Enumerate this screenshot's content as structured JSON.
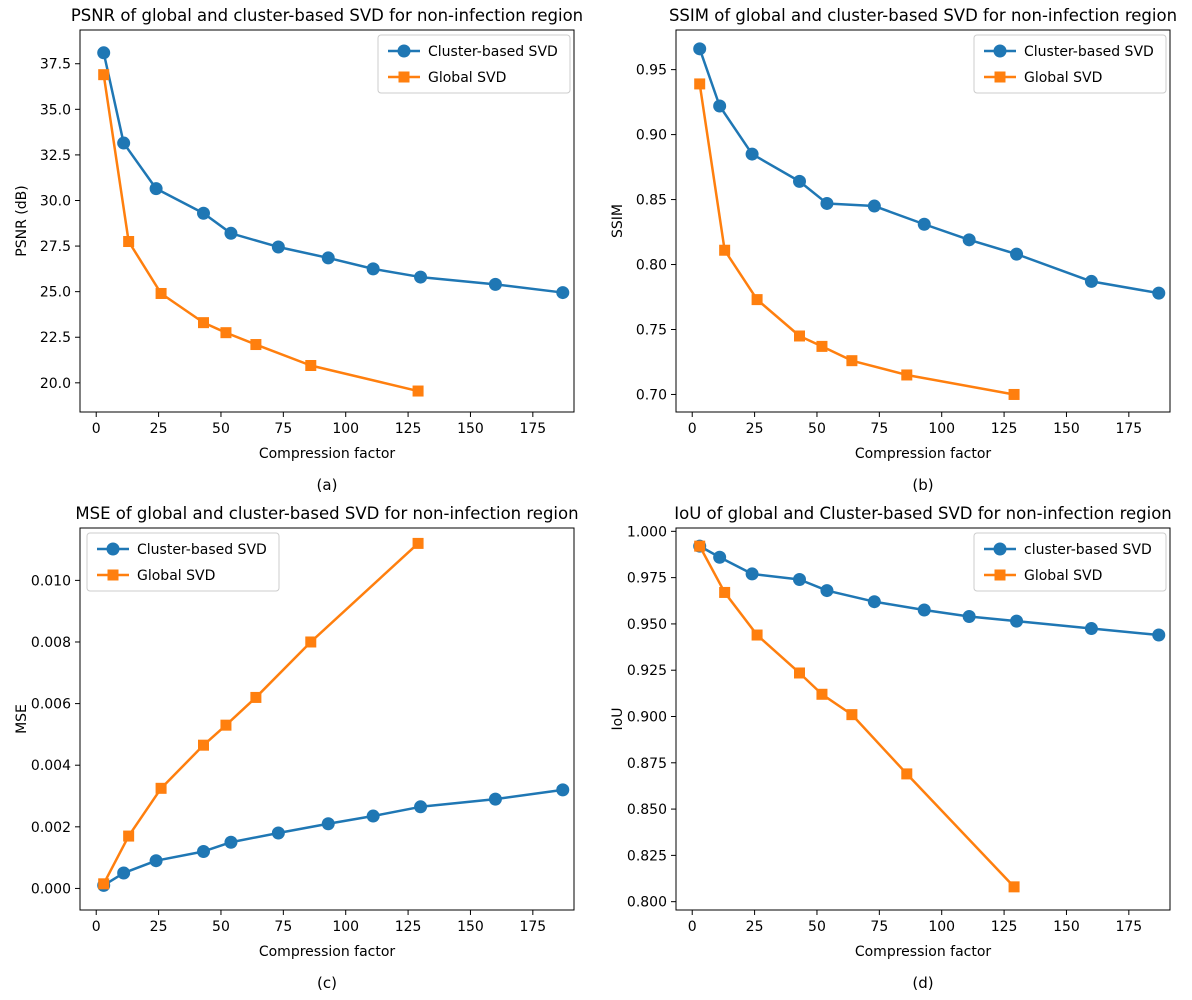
{
  "figure_background": "#ffffff",
  "colors": {
    "cluster_blue": "#1f77b4",
    "global_orange": "#ff7f0e"
  },
  "chart_data": [
    {
      "type": "line",
      "caption": "(a)",
      "title": "PSNR of global and cluster-based SVD for non-infection region",
      "xlabel": "Compression factor",
      "ylabel": "PSNR (dB)",
      "xlim": [
        -6.5,
        191.5
      ],
      "ylim": [
        18.4,
        39.35
      ],
      "grid": false,
      "legend_position": "upper-right",
      "xticks": {
        "values": [
          0,
          25,
          50,
          75,
          100,
          125,
          150,
          175
        ],
        "labels": [
          "0",
          "25",
          "50",
          "75",
          "100",
          "125",
          "150",
          "175"
        ]
      },
      "yticks": {
        "values": [
          20.0,
          22.5,
          25.0,
          27.5,
          30.0,
          32.5,
          35.0,
          37.5
        ],
        "labels": [
          "20.0",
          "22.5",
          "25.0",
          "27.5",
          "30.0",
          "32.5",
          "35.0",
          "37.5"
        ]
      },
      "series": [
        {
          "name": "Cluster-based SVD",
          "color": "#1f77b4",
          "marker": "circle",
          "x": [
            3,
            11,
            24,
            43,
            54,
            73,
            93,
            111,
            130,
            160,
            187
          ],
          "y": [
            38.1,
            33.15,
            30.65,
            29.3,
            28.2,
            27.45,
            26.85,
            26.25,
            25.8,
            25.4,
            24.95
          ]
        },
        {
          "name": "Global SVD",
          "color": "#ff7f0e",
          "marker": "square",
          "x": [
            3,
            13,
            26,
            43,
            52,
            64,
            86,
            129
          ],
          "y": [
            36.9,
            27.75,
            24.9,
            23.3,
            22.75,
            22.1,
            20.95,
            19.55
          ]
        }
      ]
    },
    {
      "type": "line",
      "caption": "(b)",
      "title": "SSIM of global and cluster-based SVD for non-infection region",
      "xlabel": "Compression factor",
      "ylabel": "SSIM",
      "xlim": [
        -6.5,
        191.5
      ],
      "ylim": [
        0.6865,
        0.9805
      ],
      "grid": false,
      "legend_position": "upper-right",
      "xticks": {
        "values": [
          0,
          25,
          50,
          75,
          100,
          125,
          150,
          175
        ],
        "labels": [
          "0",
          "25",
          "50",
          "75",
          "100",
          "125",
          "150",
          "175"
        ]
      },
      "yticks": {
        "values": [
          0.7,
          0.75,
          0.8,
          0.85,
          0.9,
          0.95
        ],
        "labels": [
          "0.70",
          "0.75",
          "0.80",
          "0.85",
          "0.90",
          "0.95"
        ]
      },
      "series": [
        {
          "name": "Cluster-based SVD",
          "color": "#1f77b4",
          "marker": "circle",
          "x": [
            3,
            11,
            24,
            43,
            54,
            73,
            93,
            111,
            130,
            160,
            187
          ],
          "y": [
            0.966,
            0.922,
            0.885,
            0.864,
            0.847,
            0.845,
            0.831,
            0.819,
            0.808,
            0.787,
            0.778
          ]
        },
        {
          "name": "Global SVD",
          "color": "#ff7f0e",
          "marker": "square",
          "x": [
            3,
            13,
            26,
            43,
            52,
            64,
            86,
            129
          ],
          "y": [
            0.939,
            0.811,
            0.773,
            0.745,
            0.737,
            0.726,
            0.715,
            0.7
          ]
        }
      ]
    },
    {
      "type": "line",
      "caption": "(c)",
      "title": "MSE of global and cluster-based SVD for non-infection region",
      "xlabel": "Compression factor",
      "ylabel": "MSE",
      "xlim": [
        -6.5,
        191.5
      ],
      "ylim": [
        -0.0007,
        0.0117
      ],
      "grid": false,
      "legend_position": "upper-left",
      "xticks": {
        "values": [
          0,
          25,
          50,
          75,
          100,
          125,
          150,
          175
        ],
        "labels": [
          "0",
          "25",
          "50",
          "75",
          "100",
          "125",
          "150",
          "175"
        ]
      },
      "yticks": {
        "values": [
          0.0,
          0.002,
          0.004,
          0.006,
          0.008,
          0.01
        ],
        "labels": [
          "0.000",
          "0.002",
          "0.004",
          "0.006",
          "0.008",
          "0.010"
        ]
      },
      "series": [
        {
          "name": "Cluster-based SVD",
          "color": "#1f77b4",
          "marker": "circle",
          "x": [
            3,
            11,
            24,
            43,
            54,
            73,
            93,
            111,
            130,
            160,
            187
          ],
          "y": [
            0.0001,
            0.0005,
            0.0009,
            0.0012,
            0.0015,
            0.0018,
            0.0021,
            0.00235,
            0.00265,
            0.0029,
            0.0032
          ]
        },
        {
          "name": "Global SVD",
          "color": "#ff7f0e",
          "marker": "square",
          "x": [
            3,
            13,
            26,
            43,
            52,
            64,
            86,
            129
          ],
          "y": [
            0.00015,
            0.0017,
            0.00325,
            0.00465,
            0.0053,
            0.0062,
            0.008,
            0.0112
          ]
        }
      ]
    },
    {
      "type": "line",
      "caption": "(d)",
      "title": "IoU of global and Cluster-based SVD for non-infection region",
      "xlabel": "Compression factor",
      "ylabel": "IoU",
      "xlim": [
        -6.5,
        191.5
      ],
      "ylim": [
        0.7955,
        1.0018
      ],
      "grid": false,
      "legend_position": "upper-right",
      "xticks": {
        "values": [
          0,
          25,
          50,
          75,
          100,
          125,
          150,
          175
        ],
        "labels": [
          "0",
          "25",
          "50",
          "75",
          "100",
          "125",
          "150",
          "175"
        ]
      },
      "yticks": {
        "values": [
          0.8,
          0.825,
          0.85,
          0.875,
          0.9,
          0.925,
          0.95,
          0.975,
          1.0
        ],
        "labels": [
          "0.800",
          "0.825",
          "0.850",
          "0.875",
          "0.900",
          "0.925",
          "0.950",
          "0.975",
          "1.000"
        ]
      },
      "series": [
        {
          "name": "cluster-based SVD",
          "color": "#1f77b4",
          "marker": "circle",
          "x": [
            3,
            11,
            24,
            43,
            54,
            73,
            93,
            111,
            130,
            160,
            187
          ],
          "y": [
            0.992,
            0.986,
            0.977,
            0.974,
            0.968,
            0.962,
            0.9575,
            0.954,
            0.9515,
            0.9475,
            0.944
          ]
        },
        {
          "name": "Global SVD",
          "color": "#ff7f0e",
          "marker": "square",
          "x": [
            3,
            13,
            26,
            43,
            52,
            64,
            86,
            129
          ],
          "y": [
            0.992,
            0.967,
            0.944,
            0.9235,
            0.912,
            0.901,
            0.869,
            0.808
          ]
        }
      ]
    }
  ]
}
